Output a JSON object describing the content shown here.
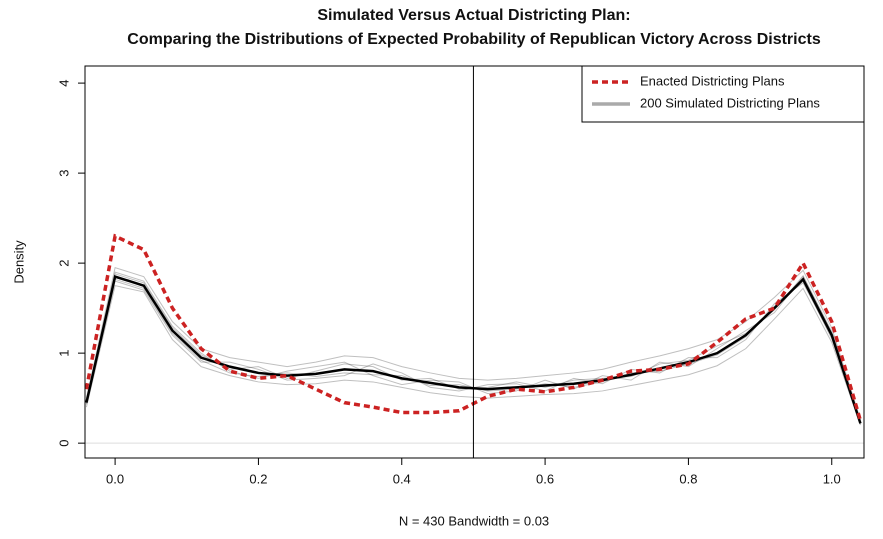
{
  "chart_data": {
    "type": "line",
    "title": "Simulated Versus Actual Districting Plan:",
    "subtitle": "Comparing the Distributions of Expected Probability of Republican Victory Across Districts",
    "xlabel": "N = 430   Bandwidth = 0.03",
    "ylabel": "Density",
    "x": [
      -0.04,
      0,
      0.04,
      0.08,
      0.12,
      0.16,
      0.2,
      0.24,
      0.28,
      0.32,
      0.36,
      0.4,
      0.44,
      0.48,
      0.52,
      0.56,
      0.6,
      0.64,
      0.68,
      0.72,
      0.76,
      0.8,
      0.84,
      0.88,
      0.92,
      0.96,
      1.0,
      1.04
    ],
    "series": [
      {
        "name": "Enacted Districting Plans",
        "color": "#cc2222",
        "dash": true,
        "values": [
          0.6,
          2.3,
          2.15,
          1.5,
          1.05,
          0.8,
          0.72,
          0.75,
          0.6,
          0.45,
          0.4,
          0.34,
          0.34,
          0.36,
          0.52,
          0.6,
          0.57,
          0.62,
          0.7,
          0.8,
          0.82,
          0.88,
          1.12,
          1.38,
          1.5,
          2.0,
          1.35,
          0.25
        ]
      },
      {
        "name": "200 Simulated Districting Plans",
        "color": "#000000",
        "legend_color": "#aaaaaa",
        "values": [
          0.45,
          1.85,
          1.75,
          1.25,
          0.95,
          0.85,
          0.78,
          0.75,
          0.77,
          0.82,
          0.8,
          0.72,
          0.67,
          0.62,
          0.6,
          0.62,
          0.64,
          0.66,
          0.7,
          0.76,
          0.83,
          0.9,
          1.0,
          1.2,
          1.5,
          1.82,
          1.2,
          0.22
        ],
        "draws": [
          [
            0.5,
            1.95,
            1.85,
            1.35,
            1.05,
            0.95,
            0.9,
            0.85,
            0.9,
            0.97,
            0.95,
            0.85,
            0.78,
            0.72,
            0.7,
            0.72,
            0.75,
            0.78,
            0.82,
            0.9,
            0.97,
            1.05,
            1.15,
            1.35,
            1.62,
            1.92,
            1.28,
            0.26
          ],
          [
            0.4,
            1.75,
            1.68,
            1.15,
            0.85,
            0.75,
            0.68,
            0.65,
            0.66,
            0.7,
            0.68,
            0.62,
            0.56,
            0.52,
            0.5,
            0.52,
            0.54,
            0.55,
            0.58,
            0.64,
            0.7,
            0.76,
            0.86,
            1.05,
            1.38,
            1.72,
            1.12,
            0.2
          ],
          [
            0.47,
            1.9,
            1.8,
            1.3,
            1.0,
            0.8,
            0.72,
            0.8,
            0.85,
            0.9,
            0.75,
            0.65,
            0.7,
            0.68,
            0.55,
            0.58,
            0.7,
            0.6,
            0.75,
            0.7,
            0.9,
            0.85,
            1.05,
            1.25,
            1.45,
            1.85,
            1.22,
            0.23
          ],
          [
            0.43,
            1.8,
            1.7,
            1.2,
            0.9,
            0.9,
            0.82,
            0.7,
            0.72,
            0.75,
            0.88,
            0.78,
            0.62,
            0.58,
            0.65,
            0.66,
            0.58,
            0.72,
            0.66,
            0.82,
            0.78,
            0.95,
            0.95,
            1.15,
            1.55,
            1.78,
            1.18,
            0.21
          ],
          [
            0.46,
            1.88,
            1.78,
            1.28,
            0.98,
            0.82,
            0.85,
            0.72,
            0.8,
            0.88,
            0.85,
            0.7,
            0.72,
            0.6,
            0.62,
            0.68,
            0.62,
            0.7,
            0.72,
            0.74,
            0.88,
            0.92,
            1.08,
            1.22,
            1.48,
            1.86,
            1.24,
            0.24
          ],
          [
            0.44,
            1.82,
            1.72,
            1.22,
            0.92,
            0.78,
            0.74,
            0.78,
            0.74,
            0.78,
            0.76,
            0.75,
            0.64,
            0.65,
            0.58,
            0.6,
            0.66,
            0.62,
            0.68,
            0.78,
            0.8,
            0.88,
            0.98,
            1.18,
            1.52,
            1.8,
            1.16,
            0.22
          ]
        ]
      }
    ],
    "xlim": [
      -0.042,
      1.045
    ],
    "ylim": [
      -0.165,
      4.19
    ],
    "xticks": [
      {
        "value": 0,
        "label": "0.0"
      },
      0.2,
      0.4,
      0.6,
      0.8,
      {
        "value": 1,
        "label": "1.0"
      }
    ],
    "yticks": [
      0,
      1,
      2,
      3,
      4
    ],
    "vline": 0.5,
    "legend": "top-right"
  }
}
